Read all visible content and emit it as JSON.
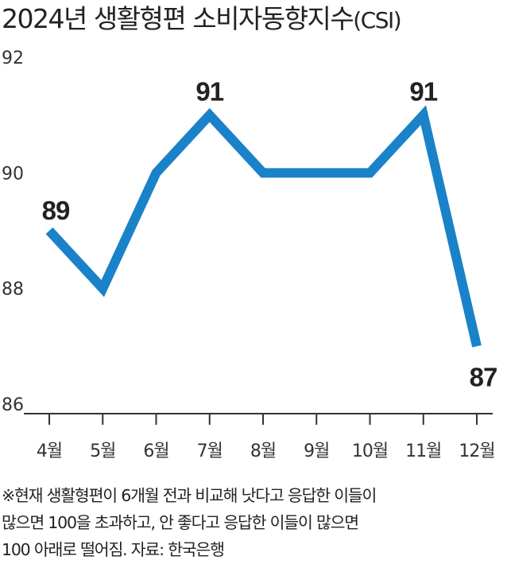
{
  "chart_data": {
    "type": "line",
    "title": "2024년 생활형편 소비자동향지수",
    "title_suffix": "(CSI)",
    "categories": [
      "4월",
      "5월",
      "6월",
      "7월",
      "8월",
      "9월",
      "10월",
      "11월",
      "12월"
    ],
    "values": [
      89,
      88,
      90,
      91,
      90,
      90,
      90,
      91,
      87
    ],
    "labeled_points": [
      {
        "index": 0,
        "label": "89"
      },
      {
        "index": 3,
        "label": "91"
      },
      {
        "index": 7,
        "label": "91"
      },
      {
        "index": 8,
        "label": "87"
      }
    ],
    "yticks": [
      "86",
      "88",
      "90",
      "92"
    ],
    "ylim": [
      86,
      92
    ],
    "grid": false,
    "line_color": "#1a82c8"
  },
  "note": {
    "lines": [
      "※현재 생활형편이 6개월 전과 비교해 낫다고 응답한 이들이",
      "많으면 100을 초과하고, 안 좋다고 응답한 이들이 많으면",
      "100 아래로 떨어짐. 자료: 한국은행"
    ]
  }
}
